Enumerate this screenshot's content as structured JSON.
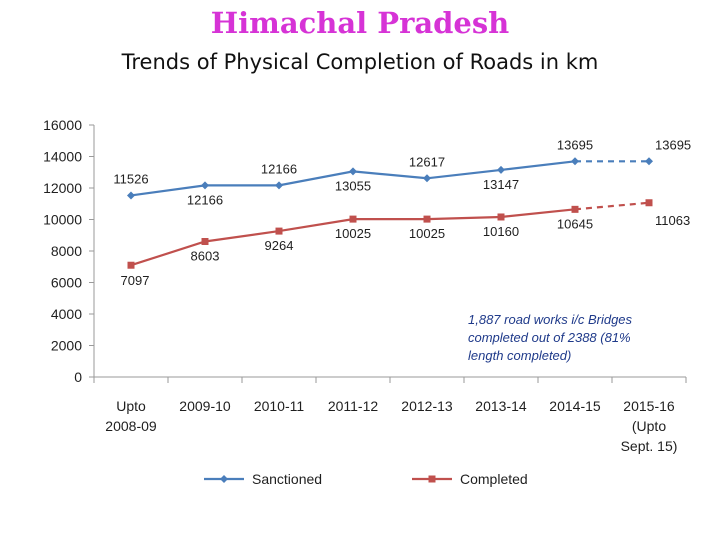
{
  "header": {
    "title": "Himachal Pradesh",
    "subtitle": "Trends of Physical Completion of Roads in km"
  },
  "chart_data": {
    "type": "line",
    "title": "Trends of Physical Completion of Roads in km",
    "categories": [
      [
        "Upto",
        "2008-09"
      ],
      [
        "2009-10"
      ],
      [
        "2010-11"
      ],
      [
        "2011-12"
      ],
      [
        "2012-13"
      ],
      [
        "2013-14"
      ],
      [
        "2014-15"
      ],
      [
        "2015-16",
        "(Upto",
        "Sept. 15)"
      ]
    ],
    "yticks": [
      "0",
      "2000",
      "4000",
      "6000",
      "8000",
      "10000",
      "12000",
      "14000",
      "16000"
    ],
    "ylim": [
      0,
      16000
    ],
    "grid": false,
    "legend_position": "bottom",
    "series": [
      {
        "name": "Sanctioned",
        "color": "#4a7ebb",
        "marker": "diamond",
        "values": [
          11526,
          12166,
          12166,
          13055,
          12617,
          13147,
          13695,
          13695
        ],
        "labels": [
          "11526",
          "12166",
          "12166",
          "13055",
          "12617",
          "13147",
          "13695",
          "13695"
        ],
        "label_side": [
          "above",
          "below",
          "above",
          "below",
          "above",
          "below",
          "above",
          "above"
        ],
        "dashed_last_segment": true
      },
      {
        "name": "Completed",
        "color": "#c0504d",
        "marker": "square",
        "values": [
          7097,
          8603,
          9264,
          10025,
          10025,
          10160,
          10645,
          11063
        ],
        "labels": [
          "7097",
          "8603",
          "9264",
          "10025",
          "10025",
          "10160",
          "10645",
          "11063"
        ],
        "label_side": [
          "below",
          "below",
          "below",
          "below",
          "below",
          "below",
          "below",
          "below"
        ],
        "dashed_last_segment": true
      }
    ],
    "annotation": [
      "1,887 road works i/c Bridges",
      "completed out of 2388 (81%",
      "length completed)"
    ]
  }
}
